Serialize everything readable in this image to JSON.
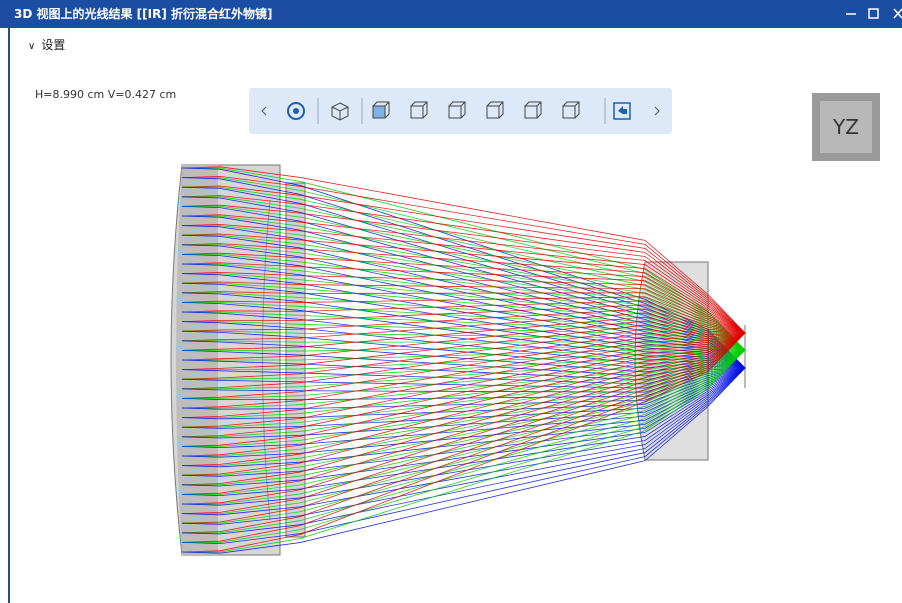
{
  "window": {
    "title": "3D 视图上的光线结果 [[IR] 折衍混合红外物镜]"
  },
  "settings": {
    "label": "设置"
  },
  "view": {
    "scale_text": "H=8.990 cm V=0.427 cm",
    "orientation": "YZ"
  }
}
